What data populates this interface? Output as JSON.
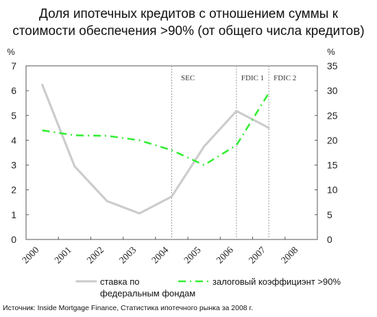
{
  "title_lines": [
    "Доля ипотечных кредитов с отношением суммы к",
    "стоимости обеспечения >90% (от общего числа кредитов)"
  ],
  "source": "Источник: Inside Mortgage Finance, Статистика ипотечного рынка за 2008 г.",
  "colors": {
    "fed_rate": "#cccccc",
    "ltv": "#33ee33",
    "axis": "#555555",
    "vline": "#999999"
  },
  "chart_data": {
    "type": "line",
    "title": "Доля ипотечных кредитов с отношением суммы к стоимости обеспечения >90% (от общего числа кредитов)",
    "categories": [
      "2000",
      "2001",
      "2002",
      "2003",
      "2004",
      "2005",
      "2006",
      "2007",
      "2008"
    ],
    "y_left": {
      "unit": "%",
      "ylim": [
        0,
        7
      ],
      "ticks": [
        0,
        1,
        2,
        3,
        4,
        5,
        6,
        7
      ]
    },
    "y_right": {
      "unit": "%",
      "ylim": [
        0,
        35
      ],
      "ticks": [
        0,
        5,
        10,
        15,
        20,
        25,
        30,
        35
      ]
    },
    "grid": false,
    "legend_position": "bottom",
    "series": [
      {
        "name": "ставка по федеральным фондам",
        "legend_lines": [
          "ставка по",
          "федеральным фондам"
        ],
        "axis": "left",
        "style": "solid",
        "x": [
          "2000",
          "2001",
          "2002",
          "2003",
          "2004",
          "2005",
          "2006",
          "2007"
        ],
        "values": [
          6.24,
          2.95,
          1.55,
          1.05,
          1.73,
          3.75,
          5.18,
          4.5
        ]
      },
      {
        "name": "залоговый коэффициэнт >90%",
        "axis": "right",
        "style": "dash-dot",
        "x": [
          "2000",
          "2001",
          "2002",
          "2003",
          "2004",
          "2005",
          "2006",
          "2007"
        ],
        "values": [
          22.0,
          21.0,
          20.9,
          20.0,
          18.0,
          15.0,
          19.0,
          29.5
        ]
      }
    ],
    "annotations": [
      {
        "label": "SEC",
        "at": "2004"
      },
      {
        "label": "FDIC 1",
        "at": "2006"
      },
      {
        "label": "FDIC 2",
        "at": "2007"
      }
    ]
  }
}
